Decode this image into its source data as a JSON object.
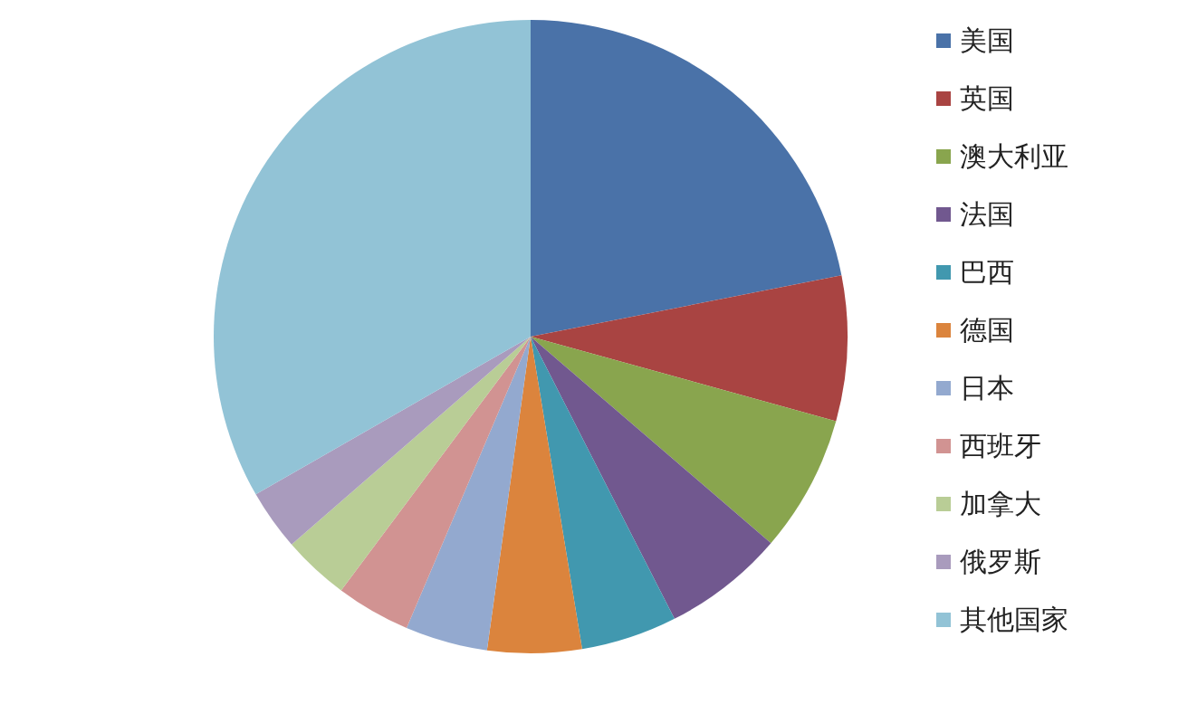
{
  "chart_data": {
    "type": "pie",
    "categories": [
      "美国",
      "英国",
      "澳大利亚",
      "法国",
      "巴西",
      "德国",
      "日本",
      "西班牙",
      "加拿大",
      "俄罗斯",
      "其他国家"
    ],
    "values": [
      21.9,
      7.4,
      7.0,
      6.2,
      4.9,
      4.8,
      4.2,
      3.8,
      3.4,
      3.1,
      33.3
    ],
    "colors": [
      "#4a72a8",
      "#a94442",
      "#89a54e",
      "#71588f",
      "#4198af",
      "#db843d",
      "#93a9cf",
      "#d19392",
      "#b9cd96",
      "#a99bbd",
      "#92c3d6"
    ],
    "legend": "right"
  }
}
